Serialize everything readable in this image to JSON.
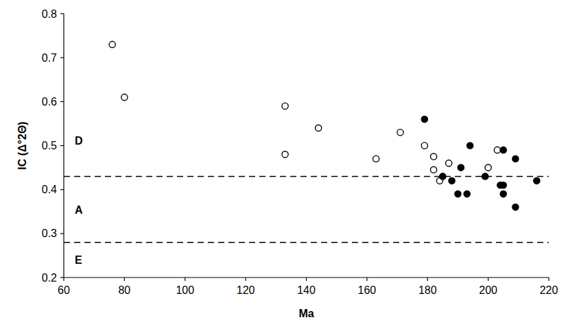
{
  "chart_data": {
    "type": "scatter",
    "xlabel": "Ma",
    "ylabel": "IC (Δ°2Θ)",
    "xlim": [
      60,
      220
    ],
    "xticks": [
      60,
      80,
      100,
      120,
      140,
      160,
      180,
      200,
      220
    ],
    "ylim": [
      0.2,
      0.8
    ],
    "yticks": [
      0.2,
      0.3,
      0.4,
      0.5,
      0.6,
      0.7,
      0.8
    ],
    "grid": false,
    "thresholds": [
      0.28,
      0.43
    ],
    "region_labels": [
      "E",
      "A",
      "D"
    ],
    "series": [
      {
        "marker": "open",
        "color": "#000000",
        "x": [
          76,
          80,
          133,
          133,
          144,
          163,
          171,
          179,
          182,
          182,
          184,
          187,
          200,
          203
        ],
        "values": [
          0.73,
          0.61,
          0.59,
          0.48,
          0.54,
          0.47,
          0.53,
          0.5,
          0.475,
          0.445,
          0.42,
          0.46,
          0.45,
          0.49
        ]
      },
      {
        "marker": "filled",
        "color": "#000000",
        "x": [
          179,
          185,
          188,
          190,
          191,
          193,
          194,
          199,
          204,
          205,
          205,
          205,
          209,
          209,
          216
        ],
        "values": [
          0.56,
          0.43,
          0.42,
          0.39,
          0.45,
          0.39,
          0.5,
          0.43,
          0.41,
          0.49,
          0.39,
          0.41,
          0.47,
          0.36,
          0.42
        ]
      }
    ]
  }
}
